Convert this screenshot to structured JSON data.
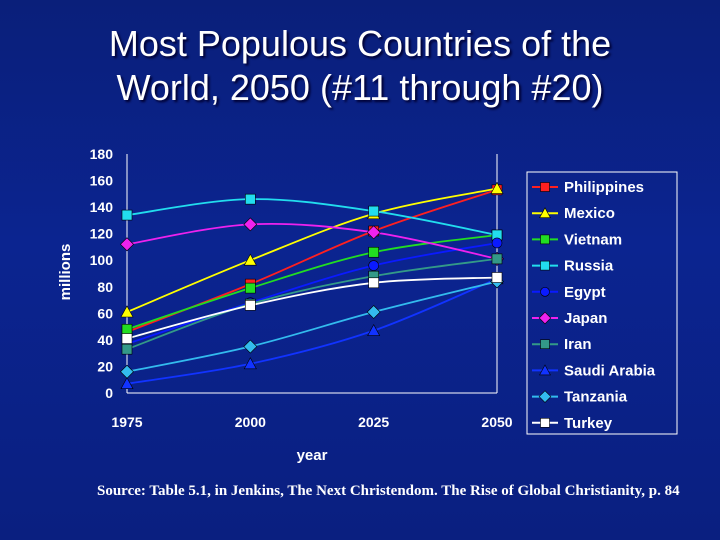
{
  "slide": {
    "title_line1": "Most Populous Countries of the",
    "title_line2": "World, 2050 (#11 through #20)",
    "source": "Source: Table 5.1, in Jenkins, The Next Christendom. The Rise of Global Christianity, p. 84"
  },
  "colors": {
    "background": "#0b2490",
    "text": "#ffffff"
  },
  "chart_data": {
    "type": "line",
    "title": "",
    "xlabel": "year",
    "ylabel": "millions",
    "x": [
      "1975",
      "2000",
      "2025",
      "2050"
    ],
    "ylim": [
      0,
      180
    ],
    "yticks": [
      0,
      20,
      40,
      60,
      80,
      100,
      120,
      140,
      160,
      180
    ],
    "grid": false,
    "legend_position": "right",
    "series": [
      {
        "name": "Philippines",
        "values": [
          46,
          82,
          122,
          153
        ],
        "color": "#ff2020",
        "marker": "square"
      },
      {
        "name": "Mexico",
        "values": [
          61,
          100,
          135,
          154
        ],
        "color": "#ffff00",
        "marker": "triangle"
      },
      {
        "name": "Vietnam",
        "values": [
          48,
          79,
          106,
          119
        ],
        "color": "#22dd22",
        "marker": "square"
      },
      {
        "name": "Russia",
        "values": [
          134,
          146,
          137,
          119
        ],
        "color": "#22ddee",
        "marker": "square"
      },
      {
        "name": "Egypt",
        "values": [
          37,
          68,
          96,
          113
        ],
        "color": "#0a1aff",
        "marker": "circle"
      },
      {
        "name": "Japan",
        "values": [
          112,
          127,
          121,
          101
        ],
        "color": "#ee22ee",
        "marker": "diamond"
      },
      {
        "name": "Iran",
        "values": [
          33,
          67,
          88,
          101
        ],
        "color": "#339988",
        "marker": "square"
      },
      {
        "name": "Saudi Arabia",
        "values": [
          7,
          22,
          47,
          86
        ],
        "color": "#1133ff",
        "marker": "triangle"
      },
      {
        "name": "Tanzania",
        "values": [
          16,
          35,
          61,
          84
        ],
        "color": "#33bbee",
        "marker": "diamond"
      },
      {
        "name": "Turkey",
        "values": [
          41,
          66,
          83,
          87
        ],
        "color": "#ffffff",
        "marker": "square"
      }
    ]
  }
}
